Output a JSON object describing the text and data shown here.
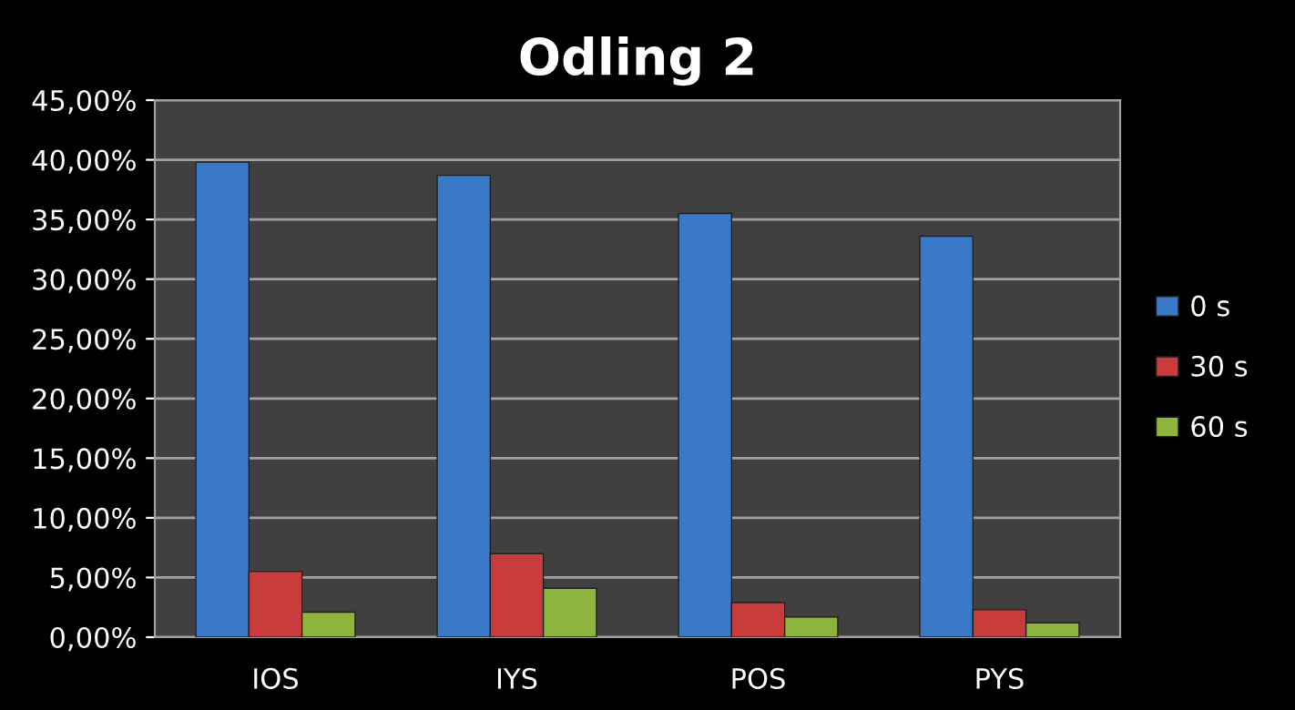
{
  "chart_data": {
    "type": "bar",
    "title": "Odling 2",
    "categories": [
      "IOS",
      "IYS",
      "POS",
      "PYS"
    ],
    "series": [
      {
        "name": "0 s",
        "color": "#3a78c8",
        "values": [
          0.398,
          0.387,
          0.355,
          0.336
        ]
      },
      {
        "name": "30 s",
        "color": "#c83c3c",
        "values": [
          0.055,
          0.07,
          0.029,
          0.023
        ]
      },
      {
        "name": "60 s",
        "color": "#8db43c",
        "values": [
          0.021,
          0.041,
          0.017,
          0.012
        ]
      }
    ],
    "ylim": [
      0,
      0.45
    ],
    "yticks": [
      {
        "value": 0,
        "label": "0,00%"
      },
      {
        "value": 0.05,
        "label": "5,00%"
      },
      {
        "value": 0.1,
        "label": "10,00%"
      },
      {
        "value": 0.15,
        "label": "15,00%"
      },
      {
        "value": 0.2,
        "label": "20,00%"
      },
      {
        "value": 0.25,
        "label": "25,00%"
      },
      {
        "value": 0.3,
        "label": "30,00%"
      },
      {
        "value": 0.35,
        "label": "35,00%"
      },
      {
        "value": 0.4,
        "label": "40,00%"
      },
      {
        "value": 0.45,
        "label": "45,00%"
      }
    ],
    "grid": "y",
    "legend": "right"
  }
}
